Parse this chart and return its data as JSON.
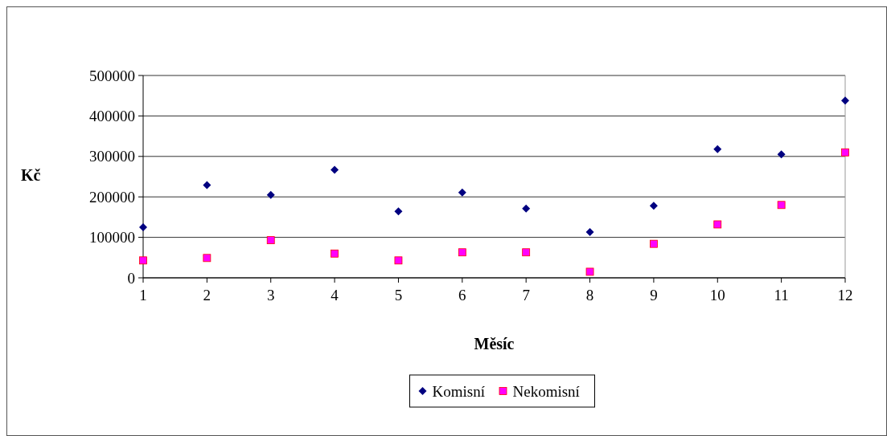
{
  "chart_data": {
    "type": "scatter",
    "xlabel": "Měsíc",
    "ylabel": "Kč",
    "x": [
      1,
      2,
      3,
      4,
      5,
      6,
      7,
      8,
      9,
      10,
      11,
      12
    ],
    "xlim": [
      1,
      12
    ],
    "xticks": [
      1,
      2,
      3,
      4,
      5,
      6,
      7,
      8,
      9,
      10,
      11,
      12
    ],
    "ylim": [
      0,
      500000
    ],
    "yticks": [
      0,
      100000,
      200000,
      300000,
      400000,
      500000
    ],
    "grid": "y",
    "legend": "bottom",
    "series": [
      {
        "name": "Komisní",
        "color": "#000080",
        "marker": "diamond",
        "values": [
          125000,
          229000,
          205000,
          267000,
          164000,
          211000,
          171000,
          113000,
          178000,
          318000,
          305000,
          438000
        ]
      },
      {
        "name": "Nekomisní",
        "color": "#ff00ff",
        "marker": "square",
        "values": [
          43000,
          49000,
          93000,
          60000,
          43000,
          63000,
          63000,
          15000,
          84000,
          132000,
          180000,
          310000
        ]
      }
    ]
  }
}
